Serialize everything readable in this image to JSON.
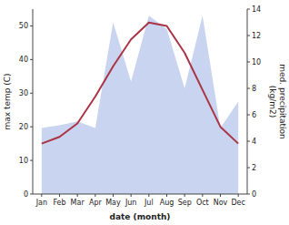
{
  "chart_data": {
    "type": "line",
    "categories": [
      "Jan",
      "Feb",
      "Mar",
      "Apr",
      "May",
      "Jun",
      "Jul",
      "Aug",
      "Sep",
      "Oct",
      "Nov",
      "Dec"
    ],
    "series": [
      {
        "type": "area",
        "axis": "y2",
        "color": "#c8d4f0",
        "values": [
          5.0,
          5.2,
          5.5,
          5.0,
          13.0,
          8.5,
          13.5,
          12.5,
          8.0,
          13.5,
          5.0,
          7.0
        ]
      },
      {
        "type": "line",
        "color": "#aa3344",
        "values": [
          15.0,
          17.0,
          21.0,
          29.0,
          38.0,
          46.0,
          51.0,
          50.0,
          42.0,
          31.0,
          20.0,
          15.0
        ]
      }
    ],
    "xlabel": "date (month)",
    "ylabel": "max temp (C)",
    "y2label": "med. precipitation\n(kg/m2)",
    "ylim": [
      0,
      55
    ],
    "yticks": [
      0,
      10,
      20,
      30,
      40,
      50
    ],
    "y2lim": [
      0,
      14
    ],
    "y2ticks": [
      0,
      2,
      4,
      6,
      8,
      10,
      12,
      14
    ]
  }
}
